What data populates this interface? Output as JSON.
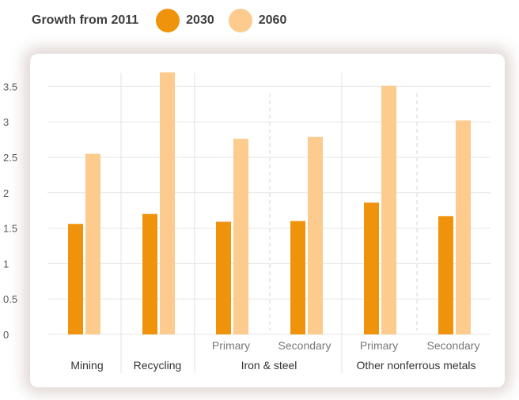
{
  "chart_data": {
    "type": "bar",
    "legend_title": "Growth from 2011",
    "legend_placement": "top-left",
    "grid": true,
    "ylim": [
      0,
      3.7
    ],
    "yticks": [
      "0",
      "0.5",
      "1",
      "1.5",
      "2",
      "2.5",
      "3",
      "3.5"
    ],
    "groups": [
      {
        "label": "Mining",
        "categories": [
          ""
        ]
      },
      {
        "label": "Recycling",
        "categories": [
          ""
        ]
      },
      {
        "label": "Iron & steel",
        "categories": [
          "Primary",
          "Secondary"
        ]
      },
      {
        "label": "Other nonferrous metals",
        "categories": [
          "Primary",
          "Secondary"
        ]
      }
    ],
    "series": [
      {
        "name": "2030",
        "color": "#f0930c",
        "values": [
          1.56,
          1.7,
          1.59,
          1.6,
          1.86,
          1.67
        ]
      },
      {
        "name": "2060",
        "color": "#fccb8d",
        "values": [
          2.55,
          3.7,
          2.76,
          2.79,
          3.51,
          3.02
        ]
      }
    ]
  }
}
